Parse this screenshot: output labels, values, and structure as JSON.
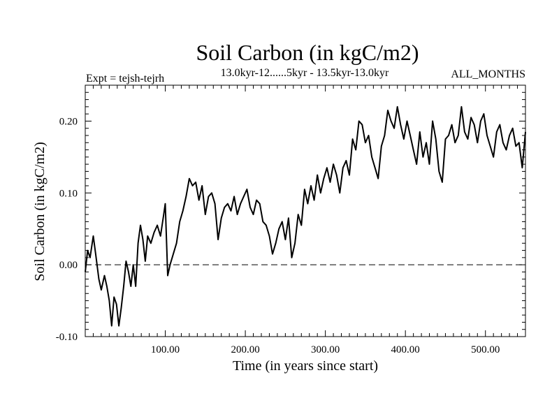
{
  "chart_data": {
    "type": "line",
    "title": "Soil Carbon (in kgC/m2)",
    "subtitle": "13.0kyr-12......5kyr - 13.5kyr-13.0kyr",
    "experiment_label": "Expt = tejsh-tejrh",
    "months_label": "ALL_MONTHS",
    "xlabel": "Time (in years since start)",
    "ylabel": "Soil Carbon (in kgC/m2)",
    "xlim": [
      0,
      550
    ],
    "ylim": [
      -0.1,
      0.25
    ],
    "x_ticks": [
      100,
      200,
      300,
      400,
      500
    ],
    "x_tick_labels": [
      "100.00",
      "200.00",
      "300.00",
      "400.00",
      "500.00"
    ],
    "y_ticks": [
      -0.1,
      0.0,
      0.1,
      0.2
    ],
    "y_tick_labels": [
      "-0.10",
      "0.00",
      "0.10",
      "0.20"
    ],
    "reference_line": {
      "y": 0.0,
      "style": "dashed"
    },
    "grid": false,
    "line_color": "#000000",
    "series": [
      {
        "x": [
          0,
          3,
          6,
          10,
          13,
          17,
          20,
          24,
          27,
          30,
          33,
          36,
          39,
          42,
          45,
          48,
          51,
          54,
          57,
          60,
          63,
          66,
          69,
          72,
          75,
          78,
          82,
          86,
          90,
          94,
          98,
          100,
          103,
          106,
          110,
          114,
          118,
          122,
          126,
          130,
          134,
          138,
          142,
          146,
          150,
          154,
          158,
          162,
          166,
          170,
          174,
          178,
          182,
          186,
          190,
          194,
          198,
          202,
          206,
          210,
          214,
          218,
          222,
          226,
          230,
          234,
          238,
          242,
          246,
          250,
          254,
          258,
          262,
          266,
          270,
          274,
          278,
          282,
          286,
          290,
          294,
          298,
          302,
          306,
          310,
          314,
          318,
          322,
          326,
          330,
          334,
          338,
          342,
          346,
          350,
          354,
          358,
          362,
          366,
          370,
          374,
          378,
          382,
          386,
          390,
          394,
          398,
          402,
          406,
          410,
          414,
          418,
          422,
          426,
          430,
          434,
          438,
          442,
          446,
          450,
          454,
          458,
          462,
          466,
          470,
          474,
          478,
          482,
          486,
          490,
          494,
          498,
          502,
          506,
          510,
          514,
          518,
          522,
          526,
          530,
          534,
          538,
          542,
          546,
          550
        ],
        "values": [
          -0.01,
          0.02,
          0.01,
          0.04,
          0.015,
          -0.02,
          -0.035,
          -0.015,
          -0.03,
          -0.05,
          -0.085,
          -0.045,
          -0.055,
          -0.085,
          -0.06,
          -0.03,
          0.005,
          -0.01,
          -0.03,
          0.0,
          -0.03,
          0.03,
          0.055,
          0.035,
          0.005,
          0.04,
          0.03,
          0.045,
          0.055,
          0.04,
          0.07,
          0.085,
          -0.015,
          0.0,
          0.015,
          0.03,
          0.06,
          0.075,
          0.095,
          0.12,
          0.11,
          0.115,
          0.09,
          0.11,
          0.07,
          0.095,
          0.1,
          0.085,
          0.035,
          0.065,
          0.08,
          0.085,
          0.075,
          0.095,
          0.07,
          0.085,
          0.095,
          0.105,
          0.08,
          0.07,
          0.09,
          0.085,
          0.06,
          0.055,
          0.04,
          0.015,
          0.03,
          0.05,
          0.06,
          0.035,
          0.065,
          0.01,
          0.03,
          0.07,
          0.055,
          0.105,
          0.085,
          0.11,
          0.09,
          0.125,
          0.1,
          0.12,
          0.135,
          0.115,
          0.14,
          0.125,
          0.1,
          0.135,
          0.145,
          0.125,
          0.175,
          0.16,
          0.2,
          0.195,
          0.17,
          0.18,
          0.15,
          0.135,
          0.12,
          0.165,
          0.18,
          0.215,
          0.2,
          0.19,
          0.22,
          0.195,
          0.175,
          0.2,
          0.18,
          0.16,
          0.14,
          0.185,
          0.15,
          0.17,
          0.14,
          0.2,
          0.175,
          0.13,
          0.115,
          0.175,
          0.18,
          0.195,
          0.17,
          0.18,
          0.22,
          0.185,
          0.175,
          0.205,
          0.195,
          0.17,
          0.2,
          0.21,
          0.18,
          0.165,
          0.15,
          0.185,
          0.195,
          0.17,
          0.16,
          0.18,
          0.19,
          0.165,
          0.17,
          0.135,
          0.185
        ]
      }
    ]
  }
}
